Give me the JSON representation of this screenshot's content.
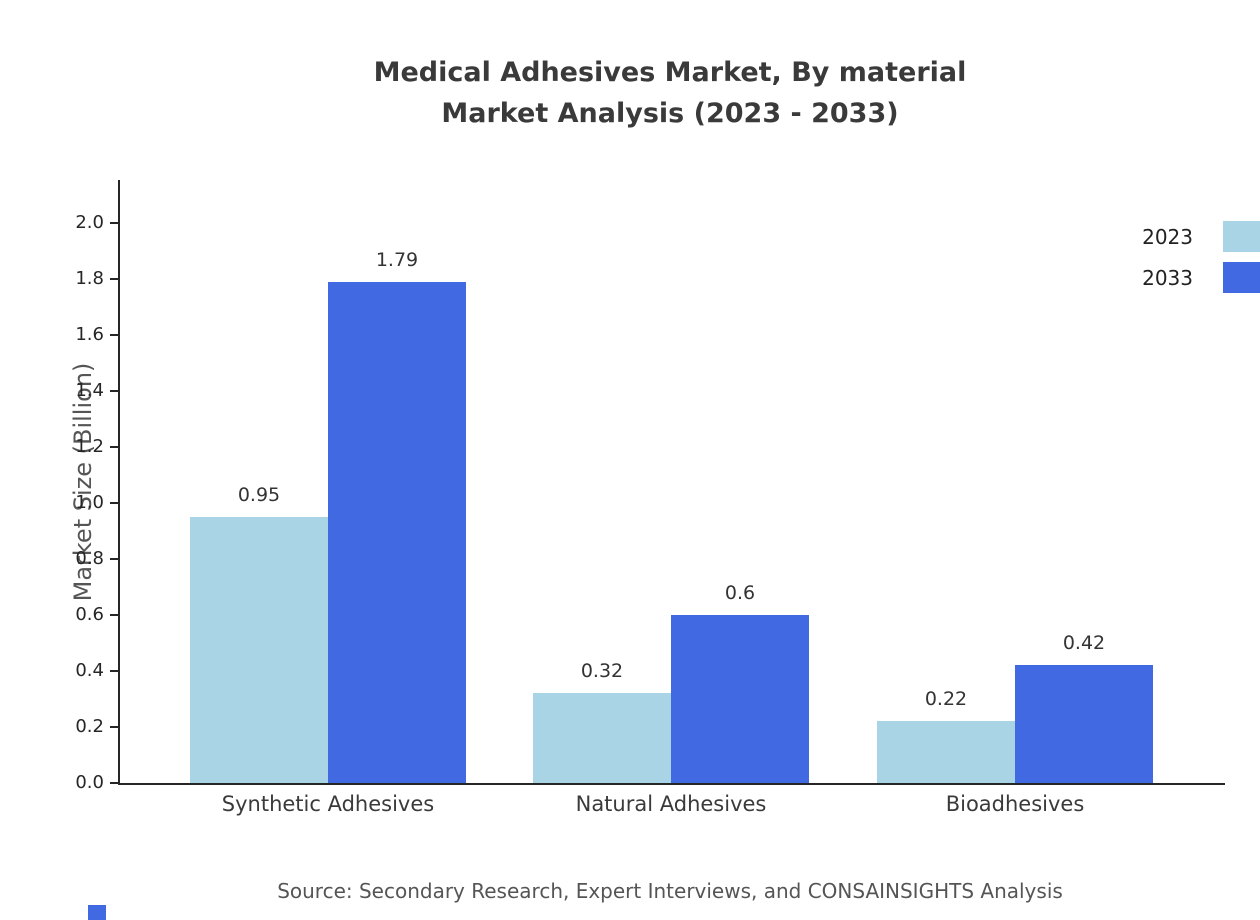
{
  "title": {
    "line1": "Medical Adhesives Market, By material",
    "line2": "Market Analysis (2023 - 2033)"
  },
  "chart_data": {
    "type": "bar",
    "title": "Medical Adhesives Market, By material Market Analysis (2023 - 2033)",
    "categories": [
      "Synthetic Adhesives",
      "Natural Adhesives",
      "Bioadhesives"
    ],
    "series": [
      {
        "name": "2023",
        "color": "#a9d4e6",
        "values": [
          0.95,
          0.32,
          0.22
        ]
      },
      {
        "name": "2033",
        "color": "#4169e1",
        "values": [
          1.79,
          0.6,
          0.42
        ]
      }
    ],
    "xlabel": "",
    "ylabel": "Market Size (Billion)",
    "ylim": [
      0,
      2.0
    ],
    "ytick_step": 0.2,
    "grid": false,
    "legend_position": "top-right",
    "value_labels": true
  },
  "source": "Source: Secondary Research, Expert Interviews, and CONSAINSIGHTS Analysis",
  "colors": {
    "axis": "#262626",
    "title_text": "#3a3a3a",
    "muted_text": "#555555",
    "accent": "#4169e1"
  }
}
